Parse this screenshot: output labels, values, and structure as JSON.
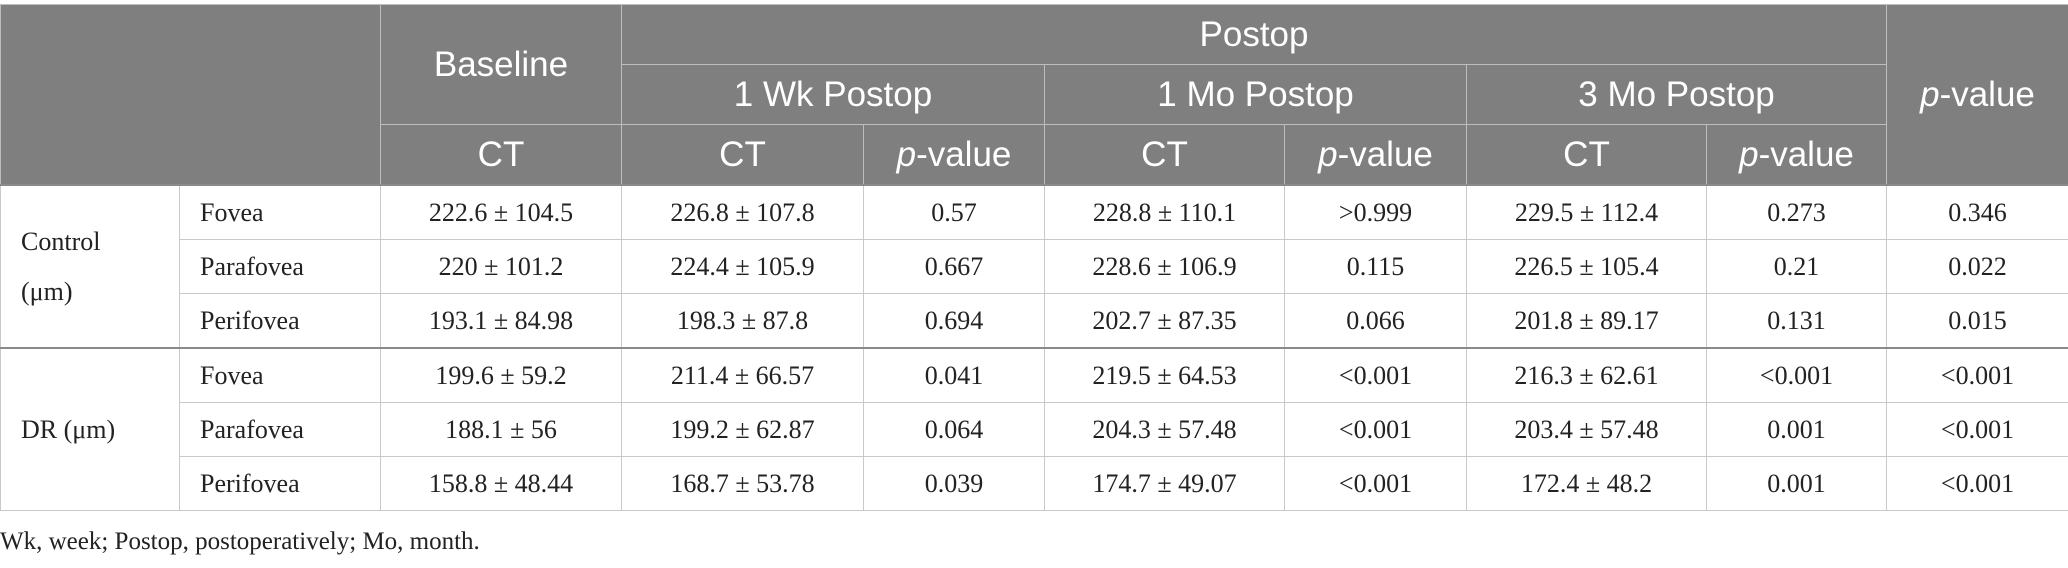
{
  "header": {
    "baseline": "Baseline",
    "postop": "Postop",
    "pvalue_overall": {
      "italic": "p",
      "rest": "-value"
    },
    "periods": [
      "1 Wk Postop",
      "1 Mo Postop",
      "3 Mo Postop"
    ],
    "ct": "CT",
    "pvalue": {
      "italic": "p",
      "rest": "-value"
    }
  },
  "groups": [
    {
      "label_line1": "Control",
      "label_line2": "(μm)",
      "rows": [
        {
          "region": "Fovea",
          "baseline": "222.6 ± 104.5",
          "wk1_ct": "226.8 ± 107.8",
          "wk1_p": "0.57",
          "mo1_ct": "228.8 ± 110.1",
          "mo1_p": ">0.999",
          "mo3_ct": "229.5 ± 112.4",
          "mo3_p": "0.273",
          "p": "0.346"
        },
        {
          "region": "Parafovea",
          "baseline": "220 ± 101.2",
          "wk1_ct": "224.4 ± 105.9",
          "wk1_p": "0.667",
          "mo1_ct": "228.6 ± 106.9",
          "mo1_p": "0.115",
          "mo3_ct": "226.5 ± 105.4",
          "mo3_p": "0.21",
          "p": "0.022"
        },
        {
          "region": "Perifovea",
          "baseline": "193.1 ± 84.98",
          "wk1_ct": "198.3 ± 87.8",
          "wk1_p": "0.694",
          "mo1_ct": "202.7 ± 87.35",
          "mo1_p": "0.066",
          "mo3_ct": "201.8 ± 89.17",
          "mo3_p": "0.131",
          "p": "0.015"
        }
      ]
    },
    {
      "label_line1": "DR (μm)",
      "label_line2": "",
      "rows": [
        {
          "region": "Fovea",
          "baseline": "199.6 ± 59.2",
          "wk1_ct": "211.4 ± 66.57",
          "wk1_p": "0.041",
          "mo1_ct": "219.5 ± 64.53",
          "mo1_p": "<0.001",
          "mo3_ct": "216.3 ± 62.61",
          "mo3_p": "<0.001",
          "p": "<0.001"
        },
        {
          "region": "Parafovea",
          "baseline": "188.1 ± 56",
          "wk1_ct": "199.2 ± 62.87",
          "wk1_p": "0.064",
          "mo1_ct": "204.3 ± 57.48",
          "mo1_p": "<0.001",
          "mo3_ct": "203.4 ± 57.48",
          "mo3_p": "0.001",
          "p": "<0.001"
        },
        {
          "region": "Perifovea",
          "baseline": "158.8 ± 48.44",
          "wk1_ct": "168.7 ± 53.78",
          "wk1_p": "0.039",
          "mo1_ct": "174.7 ± 49.07",
          "mo1_p": "<0.001",
          "mo3_ct": "172.4 ± 48.2",
          "mo3_p": "0.001",
          "p": "<0.001"
        }
      ]
    }
  ],
  "footnote": "Wk, week; Postop, postoperatively; Mo, month."
}
